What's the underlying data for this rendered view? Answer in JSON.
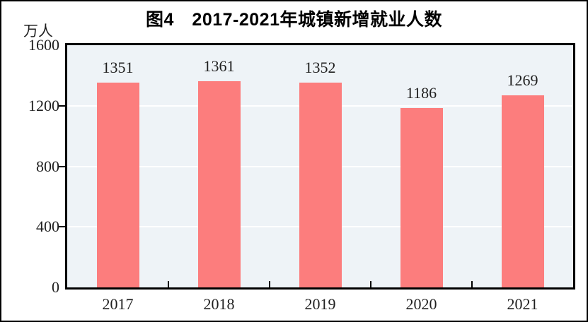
{
  "figure": {
    "title": "图4　2017-2021年城镇新增就业人数",
    "unit_label": "万人"
  },
  "chart_data": {
    "type": "bar",
    "title": "图4　2017-2021年城镇新增就业人数",
    "categories": [
      "2017",
      "2018",
      "2019",
      "2020",
      "2021"
    ],
    "values": [
      1351,
      1361,
      1352,
      1186,
      1269
    ],
    "data_labels": [
      "1351",
      "1361",
      "1352",
      "1186",
      "1269"
    ],
    "xlabel": "",
    "ylabel": "万人",
    "ylim": [
      0,
      1600
    ],
    "yticks": [
      0,
      400,
      800,
      1200,
      1600
    ],
    "grid": true,
    "legend_position": "none",
    "colors": {
      "bar_fill": "#FC7D7D",
      "plot_background": "#EEF3F7",
      "gridline": "#FFFFFF",
      "axis": "#000000",
      "text": "#1F1F1F",
      "title_text": "#000000",
      "figure_background": "#FFFFFF"
    }
  }
}
